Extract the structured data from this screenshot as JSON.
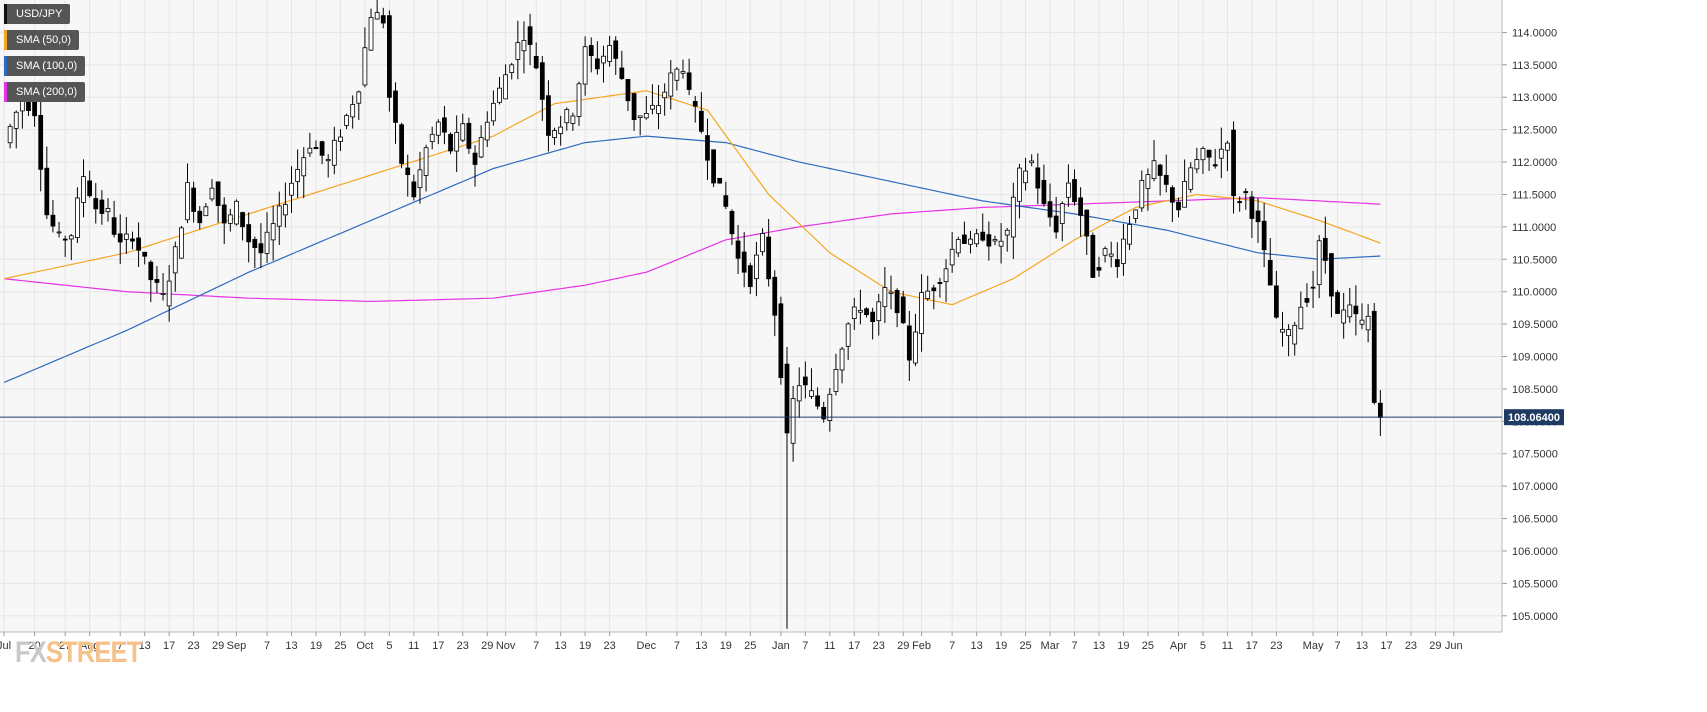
{
  "chart_data": {
    "type": "candlestick",
    "symbol": "USD/JPY",
    "last_price": "108.06400",
    "colors": {
      "background": "#f7f7f7",
      "grid": "#e6e6e6",
      "up_body": "#ffffff",
      "down_body": "#000000",
      "candle_outline": "#000000",
      "sma50": "#f5a623",
      "sma100": "#2e6bbf",
      "sma200": "#e534e5",
      "price_line": "#1f3a63",
      "price_tag": "#1f3a63"
    },
    "ylim": [
      104.75,
      114.5
    ],
    "y_ticks": [
      "114.0000",
      "113.5000",
      "113.0000",
      "112.5000",
      "112.0000",
      "111.5000",
      "111.0000",
      "110.5000",
      "110.0000",
      "109.5000",
      "109.0000",
      "108.5000",
      "108.0000",
      "107.5000",
      "107.0000",
      "106.5000",
      "106.0000",
      "105.5000",
      "105.0000"
    ],
    "x_ticks": [
      {
        "label": "Jul",
        "day": 0
      },
      {
        "label": "20",
        "day": 5
      },
      {
        "label": "27",
        "day": 10
      },
      {
        "label": "Aug",
        "day": 14
      },
      {
        "label": "7",
        "day": 19
      },
      {
        "label": "13",
        "day": 23
      },
      {
        "label": "17",
        "day": 27
      },
      {
        "label": "23",
        "day": 31
      },
      {
        "label": "29",
        "day": 35
      },
      {
        "label": "Sep",
        "day": 38
      },
      {
        "label": "7",
        "day": 43
      },
      {
        "label": "13",
        "day": 47
      },
      {
        "label": "19",
        "day": 51
      },
      {
        "label": "25",
        "day": 55
      },
      {
        "label": "Oct",
        "day": 59
      },
      {
        "label": "5",
        "day": 63
      },
      {
        "label": "11",
        "day": 67
      },
      {
        "label": "17",
        "day": 71
      },
      {
        "label": "23",
        "day": 75
      },
      {
        "label": "29",
        "day": 79
      },
      {
        "label": "Nov",
        "day": 82
      },
      {
        "label": "7",
        "day": 87
      },
      {
        "label": "13",
        "day": 91
      },
      {
        "label": "19",
        "day": 95
      },
      {
        "label": "23",
        "day": 99
      },
      {
        "label": "Dec",
        "day": 105
      },
      {
        "label": "7",
        "day": 110
      },
      {
        "label": "13",
        "day": 114
      },
      {
        "label": "19",
        "day": 118
      },
      {
        "label": "25",
        "day": 122
      },
      {
        "label": "Jan",
        "day": 127
      },
      {
        "label": "7",
        "day": 131
      },
      {
        "label": "11",
        "day": 135
      },
      {
        "label": "17",
        "day": 139
      },
      {
        "label": "23",
        "day": 143
      },
      {
        "label": "29",
        "day": 147
      },
      {
        "label": "Feb",
        "day": 150
      },
      {
        "label": "7",
        "day": 155
      },
      {
        "label": "13",
        "day": 159
      },
      {
        "label": "19",
        "day": 163
      },
      {
        "label": "25",
        "day": 167
      },
      {
        "label": "Mar",
        "day": 171
      },
      {
        "label": "7",
        "day": 175
      },
      {
        "label": "13",
        "day": 179
      },
      {
        "label": "19",
        "day": 183
      },
      {
        "label": "25",
        "day": 187
      },
      {
        "label": "Apr",
        "day": 192
      },
      {
        "label": "5",
        "day": 196
      },
      {
        "label": "11",
        "day": 200
      },
      {
        "label": "17",
        "day": 204
      },
      {
        "label": "23",
        "day": 208
      },
      {
        "label": "May",
        "day": 214
      },
      {
        "label": "7",
        "day": 218
      },
      {
        "label": "13",
        "day": 222
      },
      {
        "label": "17",
        "day": 226
      },
      {
        "label": "23",
        "day": 230
      },
      {
        "label": "29",
        "day": 234
      },
      {
        "label": "Jun",
        "day": 237
      }
    ],
    "n_days": 240,
    "anchors": [
      [
        0,
        112.3
      ],
      [
        3,
        113.0
      ],
      [
        5,
        112.8
      ],
      [
        7,
        111.2
      ],
      [
        9,
        110.8
      ],
      [
        11,
        110.9
      ],
      [
        13,
        111.8
      ],
      [
        15,
        111.3
      ],
      [
        17,
        111.2
      ],
      [
        19,
        110.7
      ],
      [
        21,
        110.9
      ],
      [
        24,
        110.2
      ],
      [
        26,
        109.9
      ],
      [
        28,
        110.6
      ],
      [
        30,
        111.6
      ],
      [
        32,
        111.1
      ],
      [
        34,
        111.7
      ],
      [
        36,
        111.0
      ],
      [
        38,
        111.3
      ],
      [
        40,
        110.8
      ],
      [
        42,
        110.6
      ],
      [
        45,
        111.2
      ],
      [
        47,
        111.7
      ],
      [
        50,
        112.3
      ],
      [
        53,
        112.0
      ],
      [
        56,
        112.7
      ],
      [
        58,
        113.2
      ],
      [
        60,
        114.3
      ],
      [
        62,
        114.2
      ],
      [
        63,
        113.0
      ],
      [
        65,
        112.0
      ],
      [
        67,
        111.5
      ],
      [
        69,
        112.2
      ],
      [
        71,
        112.6
      ],
      [
        73,
        112.2
      ],
      [
        75,
        112.5
      ],
      [
        77,
        112.0
      ],
      [
        79,
        112.7
      ],
      [
        81,
        113.1
      ],
      [
        83,
        113.6
      ],
      [
        85,
        114.0
      ],
      [
        87,
        113.5
      ],
      [
        89,
        112.5
      ],
      [
        91,
        112.6
      ],
      [
        93,
        112.8
      ],
      [
        95,
        113.7
      ],
      [
        97,
        113.5
      ],
      [
        99,
        113.8
      ],
      [
        101,
        113.3
      ],
      [
        103,
        112.7
      ],
      [
        105,
        112.7
      ],
      [
        107,
        112.9
      ],
      [
        109,
        113.3
      ],
      [
        111,
        113.5
      ],
      [
        112,
        113.0
      ],
      [
        114,
        112.5
      ],
      [
        116,
        111.8
      ],
      [
        118,
        111.3
      ],
      [
        120,
        110.5
      ],
      [
        122,
        110.2
      ],
      [
        124,
        110.8
      ],
      [
        126,
        109.7
      ],
      [
        127,
        108.8
      ],
      [
        128,
        107.7
      ],
      [
        129,
        108.3
      ],
      [
        130,
        108.6
      ],
      [
        132,
        108.4
      ],
      [
        134,
        108.1
      ],
      [
        136,
        108.9
      ],
      [
        138,
        109.5
      ],
      [
        140,
        109.8
      ],
      [
        142,
        109.5
      ],
      [
        144,
        110.0
      ],
      [
        146,
        109.8
      ],
      [
        148,
        109.0
      ],
      [
        150,
        109.9
      ],
      [
        152,
        110.1
      ],
      [
        154,
        110.4
      ],
      [
        156,
        110.9
      ],
      [
        158,
        110.7
      ],
      [
        160,
        110.9
      ],
      [
        162,
        110.7
      ],
      [
        164,
        110.9
      ],
      [
        166,
        111.8
      ],
      [
        168,
        112.0
      ],
      [
        170,
        111.3
      ],
      [
        172,
        111.0
      ],
      [
        174,
        111.7
      ],
      [
        176,
        111.2
      ],
      [
        178,
        110.3
      ],
      [
        180,
        110.6
      ],
      [
        182,
        110.5
      ],
      [
        184,
        111.1
      ],
      [
        186,
        111.6
      ],
      [
        188,
        111.9
      ],
      [
        190,
        111.6
      ],
      [
        192,
        111.3
      ],
      [
        194,
        111.9
      ],
      [
        196,
        112.1
      ],
      [
        198,
        112.0
      ],
      [
        200,
        112.4
      ],
      [
        201,
        111.4
      ],
      [
        203,
        111.5
      ],
      [
        205,
        111.0
      ],
      [
        207,
        110.1
      ],
      [
        208,
        109.5
      ],
      [
        210,
        109.3
      ],
      [
        212,
        109.8
      ],
      [
        214,
        110.1
      ],
      [
        215,
        110.7
      ],
      [
        216,
        110.5
      ],
      [
        218,
        109.6
      ],
      [
        220,
        109.7
      ],
      [
        222,
        109.5
      ],
      [
        223,
        109.6
      ],
      [
        224,
        108.3
      ],
      [
        225,
        108.06
      ]
    ],
    "sma50_anchors": [
      [
        0,
        110.2
      ],
      [
        20,
        110.6
      ],
      [
        40,
        111.2
      ],
      [
        60,
        111.8
      ],
      [
        80,
        112.4
      ],
      [
        90,
        112.9
      ],
      [
        105,
        113.1
      ],
      [
        115,
        112.8
      ],
      [
        125,
        111.5
      ],
      [
        135,
        110.6
      ],
      [
        145,
        110.0
      ],
      [
        155,
        109.8
      ],
      [
        165,
        110.2
      ],
      [
        175,
        110.8
      ],
      [
        185,
        111.3
      ],
      [
        195,
        111.5
      ],
      [
        205,
        111.4
      ],
      [
        215,
        111.1
      ],
      [
        225,
        110.75
      ]
    ],
    "sma100_anchors": [
      [
        0,
        108.6
      ],
      [
        20,
        109.4
      ],
      [
        40,
        110.3
      ],
      [
        60,
        111.1
      ],
      [
        80,
        111.9
      ],
      [
        95,
        112.3
      ],
      [
        105,
        112.4
      ],
      [
        118,
        112.3
      ],
      [
        130,
        112.0
      ],
      [
        145,
        111.7
      ],
      [
        160,
        111.4
      ],
      [
        175,
        111.2
      ],
      [
        190,
        110.95
      ],
      [
        205,
        110.6
      ],
      [
        215,
        110.5
      ],
      [
        225,
        110.55
      ]
    ],
    "sma200_anchors": [
      [
        0,
        110.2
      ],
      [
        20,
        110.0
      ],
      [
        40,
        109.9
      ],
      [
        60,
        109.85
      ],
      [
        80,
        109.9
      ],
      [
        95,
        110.1
      ],
      [
        105,
        110.3
      ],
      [
        118,
        110.8
      ],
      [
        130,
        111.0
      ],
      [
        145,
        111.2
      ],
      [
        160,
        111.3
      ],
      [
        175,
        111.35
      ],
      [
        190,
        111.4
      ],
      [
        205,
        111.45
      ],
      [
        215,
        111.4
      ],
      [
        225,
        111.35
      ]
    ]
  },
  "legend": [
    {
      "label": "USD/JPY",
      "color": "#111111"
    },
    {
      "label": "SMA (50,0)",
      "color": "#f5a623"
    },
    {
      "label": "SMA (100,0)",
      "color": "#2e6bbf"
    },
    {
      "label": "SMA (200,0)",
      "color": "#e534e5"
    }
  ],
  "logo": {
    "part1": "FX",
    "part2": "STREET"
  }
}
